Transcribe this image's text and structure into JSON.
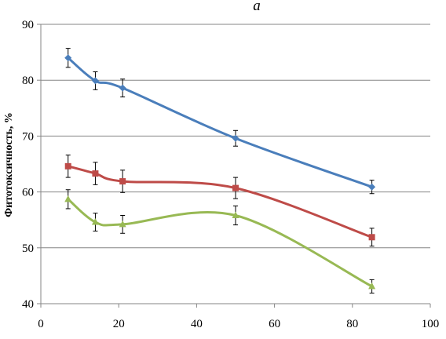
{
  "chart_data": {
    "type": "line",
    "title": "a",
    "xlabel": "",
    "ylabel": "Фитотоксичность, %",
    "xlim": [
      0,
      100
    ],
    "ylim": [
      40,
      90
    ],
    "xticks": [
      0,
      20,
      40,
      60,
      80,
      100
    ],
    "yticks": [
      40,
      50,
      60,
      70,
      80,
      90
    ],
    "grid": "horizontal",
    "legend": "none",
    "series": [
      {
        "color": "#4a7ebb",
        "marker": "diamond",
        "x": [
          7,
          14,
          21,
          50,
          85
        ],
        "y": [
          84,
          79.9,
          78.6,
          69.6,
          60.9
        ],
        "err": [
          1.7,
          1.6,
          1.6,
          1.4,
          1.2
        ]
      },
      {
        "color": "#be4b48",
        "marker": "square",
        "x": [
          7,
          14,
          21,
          50,
          85
        ],
        "y": [
          64.6,
          63.3,
          61.9,
          60.7,
          51.9
        ],
        "err": [
          2.0,
          2.0,
          2.0,
          1.9,
          1.6
        ]
      },
      {
        "color": "#98b954",
        "marker": "triangle",
        "x": [
          7,
          14,
          21,
          50,
          85
        ],
        "y": [
          58.7,
          54.6,
          54.2,
          55.8,
          43.1
        ],
        "err": [
          1.7,
          1.6,
          1.6,
          1.7,
          1.2
        ]
      }
    ]
  }
}
